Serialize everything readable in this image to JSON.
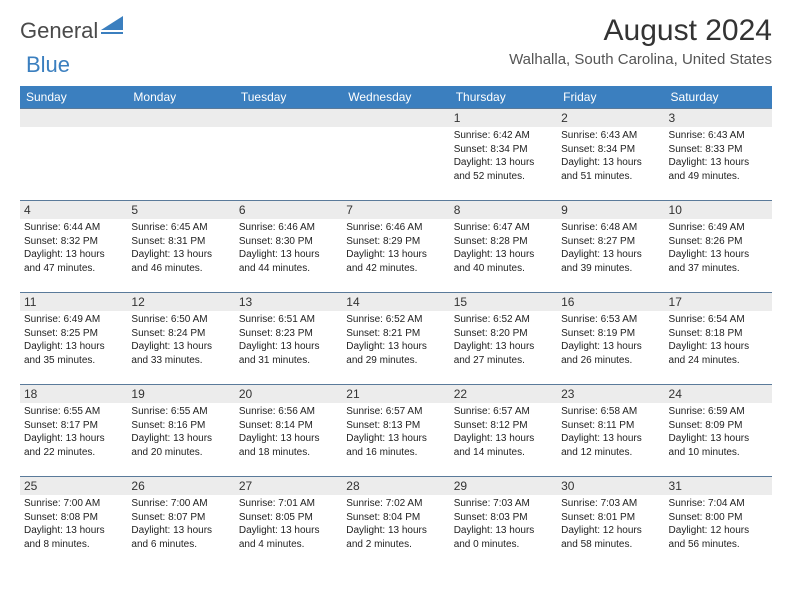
{
  "brand": {
    "general": "General",
    "blue": "Blue"
  },
  "title": "August 2024",
  "location": "Walhalla, South Carolina, United States",
  "style": {
    "header_bg": "#3b7fbf",
    "header_text": "#ffffff",
    "daynum_bg": "#ececec",
    "cell_border": "#5a7a9a",
    "title_color": "#333333",
    "text_color": "#222222",
    "page_bg": "#ffffff",
    "day_font_size": 10,
    "header_font_size": 12,
    "title_font_size": 30,
    "location_font_size": 15
  },
  "daynames": [
    "Sunday",
    "Monday",
    "Tuesday",
    "Wednesday",
    "Thursday",
    "Friday",
    "Saturday"
  ],
  "weeks": [
    [
      {
        "n": "",
        "sr": "",
        "ss": "",
        "dl": "",
        "empty": true
      },
      {
        "n": "",
        "sr": "",
        "ss": "",
        "dl": "",
        "empty": true
      },
      {
        "n": "",
        "sr": "",
        "ss": "",
        "dl": "",
        "empty": true
      },
      {
        "n": "",
        "sr": "",
        "ss": "",
        "dl": "",
        "empty": true
      },
      {
        "n": "1",
        "sr": "6:42 AM",
        "ss": "8:34 PM",
        "dl": "13 hours and 52 minutes."
      },
      {
        "n": "2",
        "sr": "6:43 AM",
        "ss": "8:34 PM",
        "dl": "13 hours and 51 minutes."
      },
      {
        "n": "3",
        "sr": "6:43 AM",
        "ss": "8:33 PM",
        "dl": "13 hours and 49 minutes."
      }
    ],
    [
      {
        "n": "4",
        "sr": "6:44 AM",
        "ss": "8:32 PM",
        "dl": "13 hours and 47 minutes."
      },
      {
        "n": "5",
        "sr": "6:45 AM",
        "ss": "8:31 PM",
        "dl": "13 hours and 46 minutes."
      },
      {
        "n": "6",
        "sr": "6:46 AM",
        "ss": "8:30 PM",
        "dl": "13 hours and 44 minutes."
      },
      {
        "n": "7",
        "sr": "6:46 AM",
        "ss": "8:29 PM",
        "dl": "13 hours and 42 minutes."
      },
      {
        "n": "8",
        "sr": "6:47 AM",
        "ss": "8:28 PM",
        "dl": "13 hours and 40 minutes."
      },
      {
        "n": "9",
        "sr": "6:48 AM",
        "ss": "8:27 PM",
        "dl": "13 hours and 39 minutes."
      },
      {
        "n": "10",
        "sr": "6:49 AM",
        "ss": "8:26 PM",
        "dl": "13 hours and 37 minutes."
      }
    ],
    [
      {
        "n": "11",
        "sr": "6:49 AM",
        "ss": "8:25 PM",
        "dl": "13 hours and 35 minutes."
      },
      {
        "n": "12",
        "sr": "6:50 AM",
        "ss": "8:24 PM",
        "dl": "13 hours and 33 minutes."
      },
      {
        "n": "13",
        "sr": "6:51 AM",
        "ss": "8:23 PM",
        "dl": "13 hours and 31 minutes."
      },
      {
        "n": "14",
        "sr": "6:52 AM",
        "ss": "8:21 PM",
        "dl": "13 hours and 29 minutes."
      },
      {
        "n": "15",
        "sr": "6:52 AM",
        "ss": "8:20 PM",
        "dl": "13 hours and 27 minutes."
      },
      {
        "n": "16",
        "sr": "6:53 AM",
        "ss": "8:19 PM",
        "dl": "13 hours and 26 minutes."
      },
      {
        "n": "17",
        "sr": "6:54 AM",
        "ss": "8:18 PM",
        "dl": "13 hours and 24 minutes."
      }
    ],
    [
      {
        "n": "18",
        "sr": "6:55 AM",
        "ss": "8:17 PM",
        "dl": "13 hours and 22 minutes."
      },
      {
        "n": "19",
        "sr": "6:55 AM",
        "ss": "8:16 PM",
        "dl": "13 hours and 20 minutes."
      },
      {
        "n": "20",
        "sr": "6:56 AM",
        "ss": "8:14 PM",
        "dl": "13 hours and 18 minutes."
      },
      {
        "n": "21",
        "sr": "6:57 AM",
        "ss": "8:13 PM",
        "dl": "13 hours and 16 minutes."
      },
      {
        "n": "22",
        "sr": "6:57 AM",
        "ss": "8:12 PM",
        "dl": "13 hours and 14 minutes."
      },
      {
        "n": "23",
        "sr": "6:58 AM",
        "ss": "8:11 PM",
        "dl": "13 hours and 12 minutes."
      },
      {
        "n": "24",
        "sr": "6:59 AM",
        "ss": "8:09 PM",
        "dl": "13 hours and 10 minutes."
      }
    ],
    [
      {
        "n": "25",
        "sr": "7:00 AM",
        "ss": "8:08 PM",
        "dl": "13 hours and 8 minutes."
      },
      {
        "n": "26",
        "sr": "7:00 AM",
        "ss": "8:07 PM",
        "dl": "13 hours and 6 minutes."
      },
      {
        "n": "27",
        "sr": "7:01 AM",
        "ss": "8:05 PM",
        "dl": "13 hours and 4 minutes."
      },
      {
        "n": "28",
        "sr": "7:02 AM",
        "ss": "8:04 PM",
        "dl": "13 hours and 2 minutes."
      },
      {
        "n": "29",
        "sr": "7:03 AM",
        "ss": "8:03 PM",
        "dl": "13 hours and 0 minutes."
      },
      {
        "n": "30",
        "sr": "7:03 AM",
        "ss": "8:01 PM",
        "dl": "12 hours and 58 minutes."
      },
      {
        "n": "31",
        "sr": "7:04 AM",
        "ss": "8:00 PM",
        "dl": "12 hours and 56 minutes."
      }
    ]
  ],
  "labels": {
    "sunrise": "Sunrise: ",
    "sunset": "Sunset: ",
    "daylight": "Daylight: "
  }
}
